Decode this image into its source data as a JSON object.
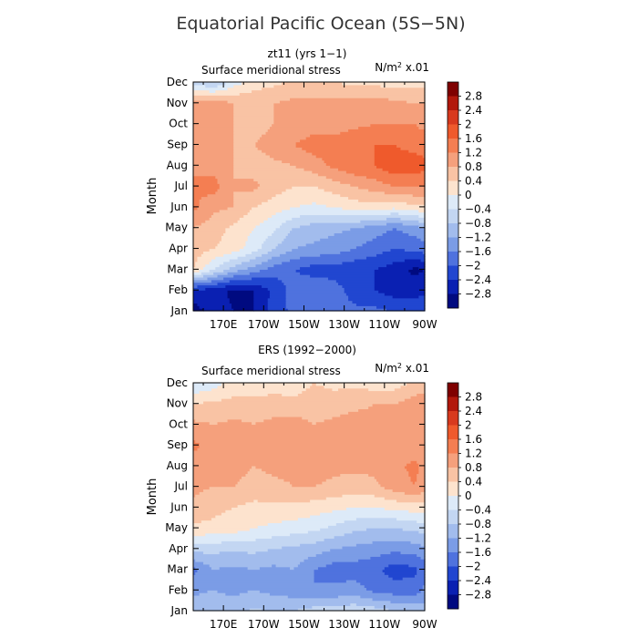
{
  "figure": {
    "title": "Equatorial Pacific Ocean (5S−5N)"
  },
  "colorbar": {
    "labels": [
      "2.8",
      "2.4",
      "2",
      "1.6",
      "1.2",
      "0.8",
      "0.4",
      "0",
      "−0.4",
      "−0.8",
      "−1.2",
      "−1.6",
      "−2",
      "−2.4",
      "−2.8"
    ],
    "colors": [
      "#7f0000",
      "#b2180c",
      "#d83a1e",
      "#ef5a2c",
      "#f47e52",
      "#f5a07c",
      "#f9c3a4",
      "#fde3ce",
      "#ddeaf8",
      "#c3d6f2",
      "#a2bced",
      "#7b9ce6",
      "#4f72de",
      "#2146d0",
      "#0a20b2",
      "#000a80"
    ]
  },
  "chart_data": [
    {
      "type": "heatmap",
      "panel_title": "zt11 (yrs 1−1)",
      "title": "Surface meridional stress",
      "units_prefix": "N/m",
      "units_exp": "2",
      "units_suffix": " x.01",
      "xlabel": "",
      "ylabel": "Month",
      "x_ticks": [
        "170E",
        "170W",
        "150W",
        "130W",
        "110W",
        "90W"
      ],
      "x_tick_lon": [
        170,
        190,
        210,
        230,
        250,
        270
      ],
      "xlim": [
        155,
        270
      ],
      "y_ticks": [
        "Jan",
        "Feb",
        "Mar",
        "Apr",
        "May",
        "Jun",
        "Jul",
        "Aug",
        "Sep",
        "Oct",
        "Nov",
        "Dec"
      ],
      "x_lon": [
        155,
        165,
        175,
        185,
        195,
        205,
        215,
        225,
        235,
        245,
        255,
        265,
        270
      ],
      "months": [
        "Jan",
        "Feb",
        "Mar",
        "Apr",
        "May",
        "Jun",
        "Jul",
        "Aug",
        "Sep",
        "Oct",
        "Nov",
        "Dec"
      ],
      "values": [
        [
          -3.0,
          -2.6,
          -2.8,
          -2.8,
          -2.2,
          -1.9,
          -1.8,
          -1.8,
          -1.9,
          -1.9,
          -2.0,
          -2.0,
          -2.1
        ],
        [
          -2.5,
          -2.6,
          -2.9,
          -2.8,
          -2.3,
          -1.8,
          -1.6,
          -1.8,
          -2.2,
          -2.4,
          -2.6,
          -2.6,
          -2.5
        ],
        [
          0.4,
          -0.4,
          -1.0,
          -1.4,
          -1.8,
          -2.0,
          -2.2,
          -2.2,
          -2.3,
          -2.4,
          -2.6,
          -2.9,
          -2.8
        ],
        [
          0.6,
          0.4,
          0.2,
          -0.2,
          -0.8,
          -1.2,
          -1.3,
          -1.4,
          -1.6,
          -1.8,
          -2.0,
          -1.9,
          -1.8
        ],
        [
          0.8,
          0.6,
          0.3,
          0.0,
          -0.3,
          -0.8,
          -1.0,
          -1.1,
          -1.2,
          -1.4,
          -1.6,
          -1.4,
          -1.2
        ],
        [
          1.3,
          0.9,
          0.8,
          0.4,
          0.2,
          0.0,
          -0.1,
          0.0,
          0.2,
          0.2,
          0.1,
          0.3,
          0.3
        ],
        [
          1.2,
          1.4,
          0.8,
          0.9,
          0.6,
          0.4,
          0.4,
          0.6,
          0.8,
          1.0,
          1.2,
          1.2,
          1.2
        ],
        [
          1.2,
          1.0,
          0.8,
          0.6,
          0.7,
          0.8,
          1.0,
          1.3,
          1.5,
          1.6,
          1.9,
          1.9,
          1.7
        ],
        [
          1.0,
          1.0,
          0.8,
          0.8,
          1.0,
          1.2,
          1.4,
          1.4,
          1.5,
          1.6,
          1.6,
          1.4,
          1.4
        ],
        [
          0.9,
          0.8,
          0.8,
          0.6,
          0.8,
          0.9,
          1.0,
          1.0,
          1.1,
          1.2,
          1.2,
          1.2,
          1.1
        ],
        [
          0.9,
          1.1,
          0.8,
          0.7,
          0.8,
          0.9,
          0.9,
          0.9,
          1.0,
          1.0,
          0.9,
          0.8,
          0.8
        ],
        [
          -0.5,
          -0.9,
          -0.2,
          0.2,
          0.3,
          0.5,
          0.4,
          0.4,
          0.3,
          0.3,
          0.2,
          0.3,
          0.3
        ]
      ]
    },
    {
      "type": "heatmap",
      "panel_title": "ERS (1992−2000)",
      "title": "Surface meridional stress",
      "units_prefix": "N/m",
      "units_exp": "2",
      "units_suffix": " x.01",
      "xlabel": "",
      "ylabel": "Month",
      "x_ticks": [
        "170E",
        "170W",
        "150W",
        "130W",
        "110W",
        "90W"
      ],
      "x_tick_lon": [
        170,
        190,
        210,
        230,
        250,
        270
      ],
      "xlim": [
        155,
        270
      ],
      "y_ticks": [
        "Jan",
        "Feb",
        "Mar",
        "Apr",
        "May",
        "Jun",
        "Jul",
        "Aug",
        "Sep",
        "Oct",
        "Nov",
        "Dec"
      ],
      "x_lon": [
        155,
        165,
        175,
        185,
        195,
        205,
        215,
        225,
        235,
        245,
        255,
        265,
        270
      ],
      "months": [
        "Jan",
        "Feb",
        "Mar",
        "Apr",
        "May",
        "Jun",
        "Jul",
        "Aug",
        "Sep",
        "Oct",
        "Nov",
        "Dec"
      ],
      "values": [
        [
          -0.9,
          -0.8,
          -1.0,
          -0.7,
          -0.9,
          -0.8,
          -0.6,
          -0.6,
          -0.5,
          -0.6,
          -0.8,
          -0.9,
          -1.0
        ],
        [
          -1.3,
          -1.2,
          -1.3,
          -1.2,
          -1.3,
          -1.4,
          -1.6,
          -1.5,
          -1.4,
          -1.7,
          -1.8,
          -1.8,
          -1.5
        ],
        [
          -1.7,
          -1.2,
          -1.3,
          -1.2,
          -1.3,
          -1.2,
          -1.6,
          -1.8,
          -1.8,
          -1.9,
          -2.2,
          -2.1,
          -1.8
        ],
        [
          -0.6,
          -0.7,
          -0.7,
          -0.7,
          -0.8,
          -0.9,
          -1.0,
          -1.2,
          -1.3,
          -1.4,
          -1.5,
          -1.4,
          -1.3
        ],
        [
          0.3,
          0.3,
          0.2,
          0.0,
          -0.1,
          -0.2,
          -0.3,
          -0.5,
          -0.7,
          -0.8,
          -0.8,
          -0.7,
          -0.6
        ],
        [
          0.7,
          0.5,
          0.4,
          0.3,
          0.3,
          0.3,
          0.2,
          0.1,
          0.0,
          0.0,
          0.1,
          0.2,
          0.2
        ],
        [
          0.9,
          0.8,
          0.8,
          0.6,
          0.7,
          0.8,
          0.8,
          0.7,
          0.6,
          0.7,
          1.0,
          1.2,
          1.0
        ],
        [
          1.0,
          0.9,
          1.0,
          0.8,
          0.9,
          0.9,
          1.0,
          0.9,
          0.9,
          0.9,
          1.1,
          1.3,
          1.1
        ],
        [
          1.3,
          1.0,
          1.0,
          0.9,
          1.0,
          1.0,
          1.1,
          0.9,
          1.0,
          0.9,
          0.9,
          1.0,
          0.9
        ],
        [
          0.9,
          0.8,
          0.9,
          0.8,
          0.9,
          1.0,
          0.8,
          0.9,
          1.0,
          0.9,
          1.0,
          1.1,
          1.1
        ],
        [
          0.4,
          0.5,
          0.5,
          0.6,
          0.6,
          0.5,
          0.6,
          0.6,
          0.7,
          0.8,
          0.8,
          1.0,
          1.2
        ],
        [
          -0.4,
          -0.2,
          0.2,
          0.0,
          0.2,
          0.2,
          0.4,
          0.3,
          0.3,
          0.2,
          0.2,
          0.5,
          0.4
        ]
      ]
    }
  ]
}
